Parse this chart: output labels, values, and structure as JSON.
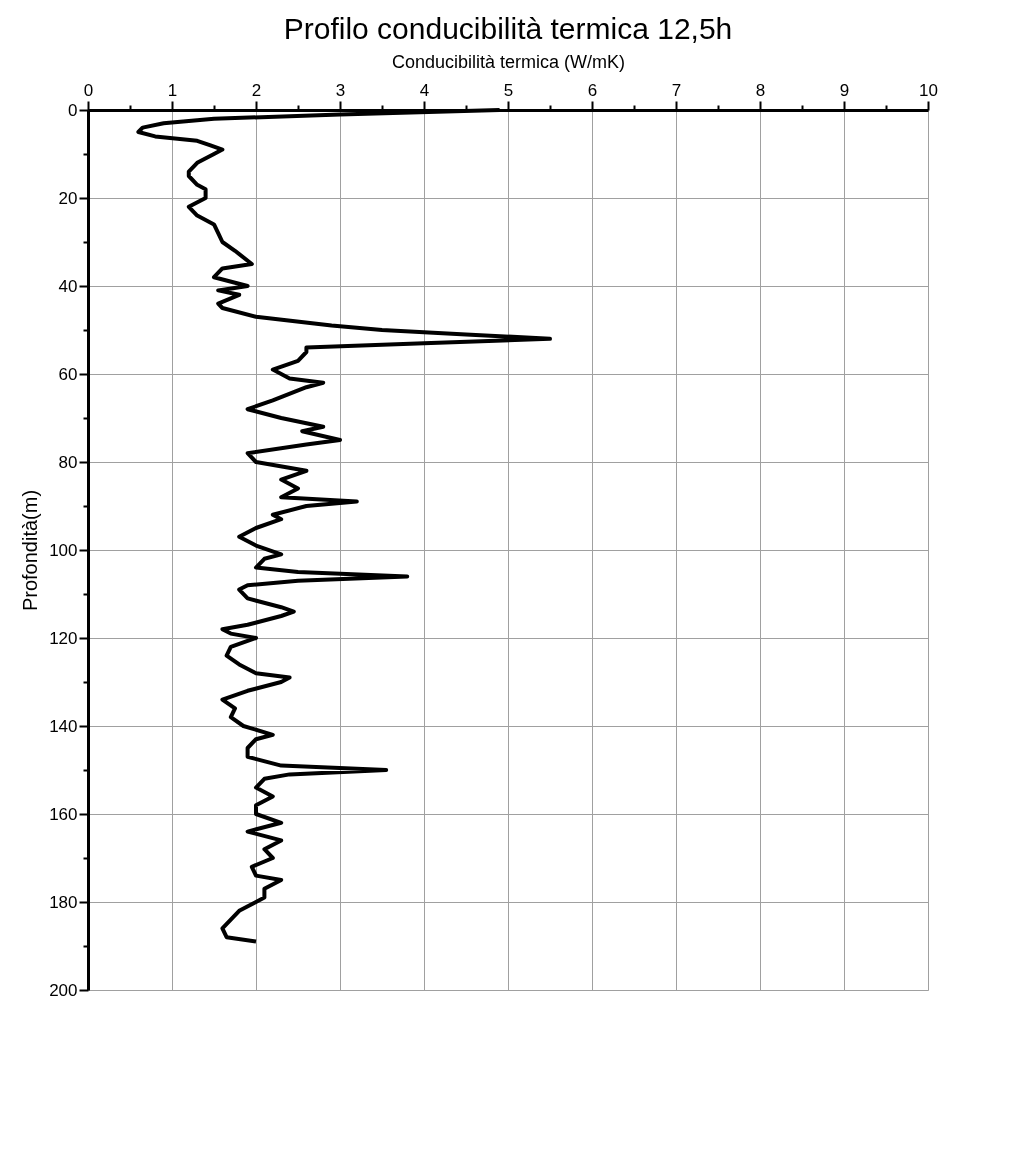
{
  "chart_data": {
    "type": "line",
    "title": "Profilo conducibilità termica 12,5h",
    "xlabel": "Conducibilità termica (W/mK)",
    "ylabel": "Profondità(m)",
    "xlim": [
      0,
      10
    ],
    "ylim": [
      200,
      0
    ],
    "xticks": [
      0,
      {
        "value": 0.5,
        "label": null
      },
      1,
      {
        "value": 1.5,
        "label": null
      },
      2,
      {
        "value": 2.5,
        "label": null
      },
      3,
      {
        "value": 3.5,
        "label": null
      },
      4,
      {
        "value": 4.5,
        "label": null
      },
      5,
      {
        "value": 5.5,
        "label": null
      },
      6,
      {
        "value": 6.5,
        "label": null
      },
      7,
      {
        "value": 7.5,
        "label": null
      },
      8,
      {
        "value": 8.5,
        "label": null
      },
      9,
      {
        "value": 9.5,
        "label": null
      },
      10
    ],
    "yticks": [
      0,
      {
        "value": 10,
        "label": null
      },
      20,
      {
        "value": 30,
        "label": null
      },
      40,
      {
        "value": 50,
        "label": null
      },
      60,
      {
        "value": 70,
        "label": null
      },
      80,
      {
        "value": 90,
        "label": null
      },
      100,
      {
        "value": 110,
        "label": null
      },
      120,
      {
        "value": 130,
        "label": null
      },
      140,
      {
        "value": 150,
        "label": null
      },
      160,
      {
        "value": 170,
        "label": null
      },
      180,
      {
        "value": 190,
        "label": null
      },
      200
    ],
    "grid": true,
    "marker": "none",
    "line_style": "solid",
    "series": [
      {
        "color": "#000000",
        "x": [
          4.9,
          3.0,
          1.5,
          0.9,
          0.65,
          0.6,
          0.8,
          1.3,
          1.45,
          1.6,
          1.5,
          1.3,
          1.2,
          1.2,
          1.3,
          1.4,
          1.4,
          1.2,
          1.3,
          1.5,
          1.55,
          1.6,
          1.75,
          1.95,
          1.6,
          1.5,
          1.9,
          1.55,
          1.8,
          1.55,
          1.6,
          2.0,
          2.9,
          3.5,
          4.5,
          5.5,
          4.0,
          2.6,
          2.6,
          2.5,
          2.2,
          2.4,
          2.8,
          2.6,
          2.2,
          1.9,
          2.3,
          2.8,
          2.55,
          3.0,
          2.6,
          1.9,
          2.0,
          2.6,
          2.3,
          2.5,
          2.3,
          3.2,
          2.6,
          2.2,
          2.3,
          2.0,
          1.8,
          2.0,
          2.3,
          2.1,
          2.0,
          2.5,
          3.8,
          2.5,
          1.9,
          1.8,
          1.9,
          2.3,
          2.45,
          2.3,
          1.9,
          1.6,
          1.7,
          2.0,
          1.7,
          1.65,
          1.8,
          2.0,
          2.4,
          2.3,
          1.9,
          1.6,
          1.75,
          1.7,
          1.85,
          2.2,
          2.0,
          1.9,
          1.9,
          2.3,
          3.55,
          2.4,
          2.1,
          2.0,
          2.2,
          2.0,
          2.0,
          2.3,
          1.9,
          2.3,
          2.1,
          2.2,
          1.95,
          2.0,
          2.3,
          2.1,
          2.1,
          2.0,
          1.8,
          1.7,
          1.6,
          1.65,
          2.0
        ],
        "values": [
          0,
          1,
          2,
          3,
          4,
          5,
          6,
          7,
          8,
          9,
          10,
          12,
          14,
          15,
          17,
          18,
          20,
          22,
          24,
          26,
          28,
          30,
          32,
          35,
          36,
          38,
          40,
          41,
          42,
          44,
          45,
          47,
          49,
          50,
          51,
          52,
          53,
          54,
          55,
          57,
          59,
          61,
          62,
          63,
          66,
          68,
          70,
          72,
          73,
          75,
          76,
          78,
          80,
          82,
          84,
          86,
          88,
          89,
          90,
          92,
          93,
          95,
          97,
          99,
          101,
          102,
          104,
          105,
          106,
          107,
          108,
          109,
          111,
          113,
          114,
          115,
          117,
          118,
          119,
          120,
          122,
          124,
          126,
          128,
          129,
          130,
          132,
          134,
          136,
          138,
          140,
          142,
          143,
          145,
          147,
          149,
          150,
          151,
          152,
          154,
          156,
          158,
          160,
          162,
          164,
          166,
          168,
          170,
          172,
          174,
          175,
          177,
          179,
          180,
          182,
          184,
          186,
          188,
          189
        ]
      }
    ]
  }
}
